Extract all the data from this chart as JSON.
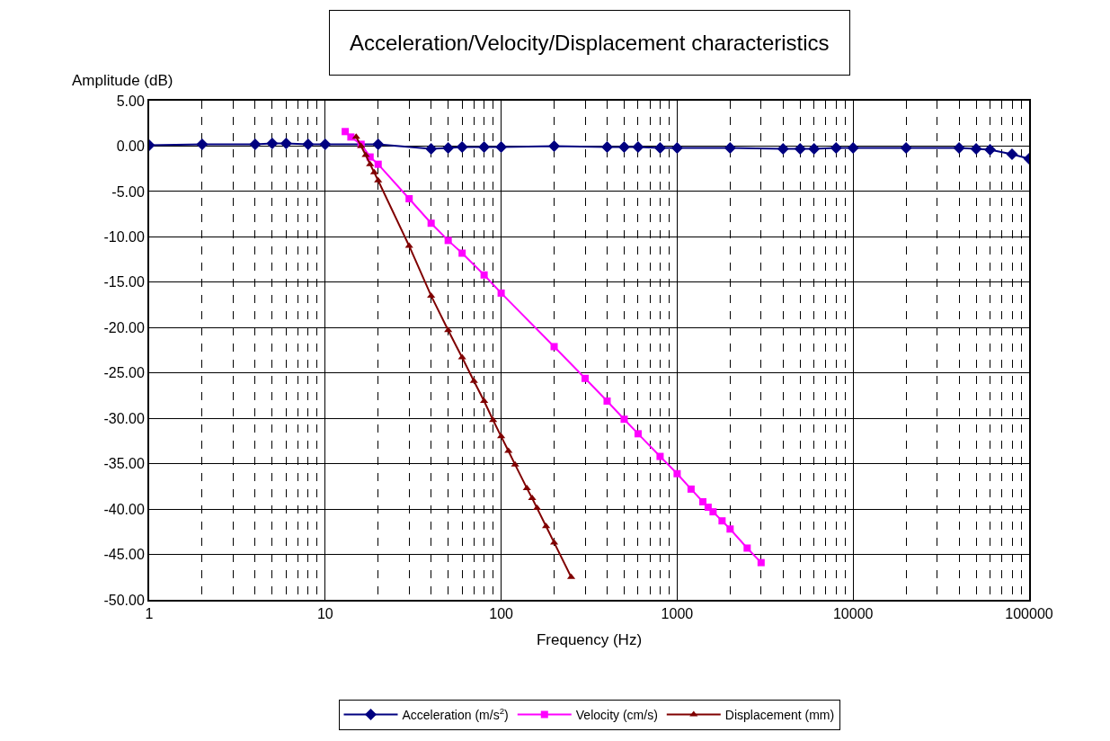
{
  "chart_data": {
    "type": "line",
    "title": "Acceleration/Velocity/Displacement characteristics",
    "xlabel": "Frequency (Hz)",
    "ylabel": "Amplitude (dB)",
    "log": "x",
    "grid": true,
    "legend": "bottom",
    "line_style": "solid",
    "xlim": [
      1,
      100000
    ],
    "xticks": [
      1,
      10,
      100,
      1000,
      10000,
      100000
    ],
    "ylim": [
      -50,
      5
    ],
    "yticks": [
      {
        "value": 5,
        "label": "5.00"
      },
      {
        "value": 0,
        "label": "0.00"
      },
      {
        "value": -5,
        "label": "-5.00"
      },
      {
        "value": -10,
        "label": "-10.00"
      },
      {
        "value": -15,
        "label": "-15.00"
      },
      {
        "value": -20,
        "label": "-20.00"
      },
      {
        "value": -25,
        "label": "-25.00"
      },
      {
        "value": -30,
        "label": "-30.00"
      },
      {
        "value": -35,
        "label": "-35.00"
      },
      {
        "value": -40,
        "label": "-40.00"
      },
      {
        "value": -45,
        "label": "-45.00"
      },
      {
        "value": -50,
        "label": "-50.00"
      }
    ],
    "series": [
      {
        "name": "Acceleration (m/s$^{2}$)",
        "color": "#000080",
        "marker": "diamond",
        "x": [
          1,
          2,
          4,
          5,
          6,
          8,
          10,
          20,
          40,
          50,
          60,
          80,
          100,
          200,
          400,
          500,
          600,
          800,
          1000,
          2000,
          4000,
          5000,
          6000,
          8000,
          10000,
          20000,
          40000,
          50000,
          60000,
          80000,
          100000
        ],
        "values": [
          0.1,
          0.2,
          0.2,
          0.3,
          0.3,
          0.2,
          0.2,
          0.2,
          -0.3,
          -0.2,
          -0.1,
          -0.1,
          -0.1,
          0.0,
          -0.1,
          -0.1,
          -0.1,
          -0.2,
          -0.2,
          -0.2,
          -0.3,
          -0.3,
          -0.3,
          -0.2,
          -0.2,
          -0.2,
          -0.2,
          -0.3,
          -0.4,
          -0.9,
          -1.4
        ]
      },
      {
        "name": "Velocity (cm/s)",
        "color": "#ff00ff",
        "marker": "square",
        "x": [
          13,
          14,
          16,
          18,
          20,
          30,
          40,
          50,
          60,
          80,
          100,
          200,
          300,
          400,
          500,
          600,
          800,
          1000,
          1200,
          1400,
          1500,
          1600,
          1800,
          2000,
          2500,
          3000
        ],
        "values": [
          1.6,
          1.0,
          0.2,
          -1.2,
          -2.0,
          -5.8,
          -8.5,
          -10.4,
          -11.8,
          -14.2,
          -16.2,
          -22.1,
          -25.6,
          -28.1,
          -30.1,
          -31.7,
          -34.2,
          -36.1,
          -37.8,
          -39.2,
          -39.8,
          -40.3,
          -41.3,
          -42.2,
          -44.3,
          -45.9
        ]
      },
      {
        "name": "Displacement (mm)",
        "color": "#800000",
        "marker": "triangle",
        "x": [
          15,
          16,
          17,
          18,
          19,
          20,
          30,
          40,
          50,
          60,
          70,
          80,
          90,
          100,
          110,
          120,
          140,
          150,
          160,
          180,
          200,
          250
        ],
        "values": [
          1.0,
          0.0,
          -1.0,
          -2.0,
          -2.9,
          -3.8,
          -11.0,
          -16.5,
          -20.3,
          -23.3,
          -25.9,
          -28.1,
          -30.2,
          -32.0,
          -33.6,
          -35.1,
          -37.7,
          -38.8,
          -39.9,
          -41.9,
          -43.7,
          -47.5
        ]
      }
    ]
  }
}
